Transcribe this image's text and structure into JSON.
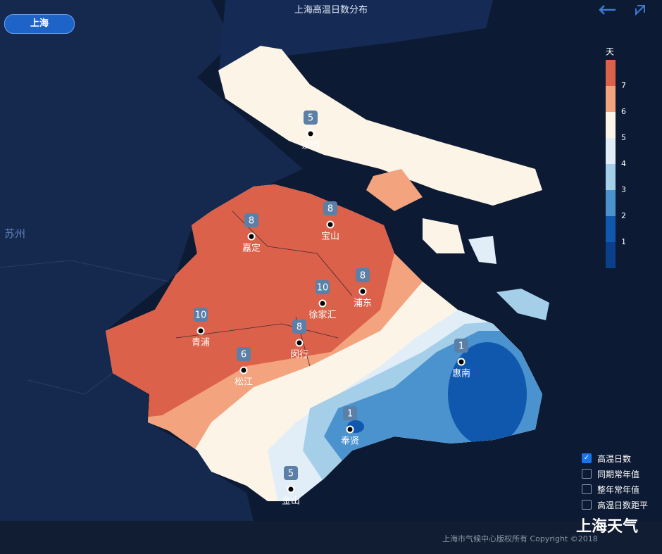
{
  "header": {
    "title": "上海高温日数分布",
    "region_button": "上海"
  },
  "map_labels": {
    "neighbor": "苏州"
  },
  "stations": [
    {
      "name": "崇明",
      "value": 5
    },
    {
      "name": "宝山",
      "value": 8
    },
    {
      "name": "嘉定",
      "value": 8
    },
    {
      "name": "浦东",
      "value": 8
    },
    {
      "name": "徐家汇",
      "value": 10
    },
    {
      "name": "青浦",
      "value": 10
    },
    {
      "name": "闵行",
      "value": 8
    },
    {
      "name": "松江",
      "value": 6
    },
    {
      "name": "奉贤",
      "value": 1
    },
    {
      "name": "惠南",
      "value": 1
    },
    {
      "name": "金山",
      "value": 5
    }
  ],
  "legend": {
    "unit": "天",
    "ticks": [
      7,
      6,
      5,
      4,
      3,
      2,
      1
    ],
    "colors": [
      "#dc614a",
      "#f3a37e",
      "#fdf4e8",
      "#e1eef8",
      "#a5cfe8",
      "#4b93cf",
      "#0f58ae",
      "#0a3f8c"
    ]
  },
  "layers": [
    {
      "label": "高温日数",
      "checked": true
    },
    {
      "label": "同期常年值",
      "checked": false
    },
    {
      "label": "整年常年值",
      "checked": false
    },
    {
      "label": "高温日数距平",
      "checked": false
    }
  ],
  "footer": {
    "copyright": "上海市气候中心版权所有 Copyright ©2018",
    "watermark": "上海天气"
  }
}
